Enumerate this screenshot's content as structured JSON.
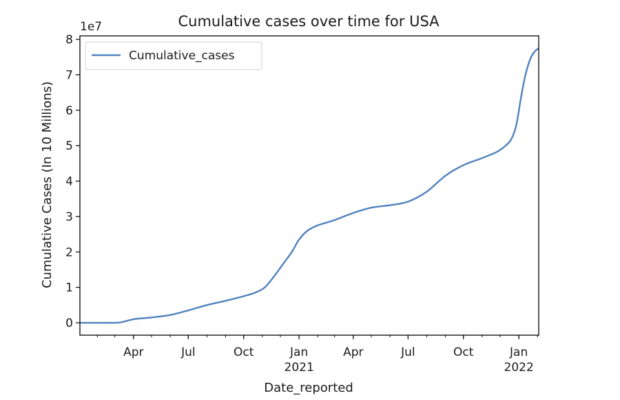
{
  "chart_data": {
    "type": "line",
    "title": "Cumulative cases over time for USA",
    "xlabel": "Date_reported",
    "ylabel": "Cumulative Cases (In 10 Millions)",
    "y_exponent_label": "1e7",
    "ylim": [
      -0.35,
      8.1
    ],
    "xlim": [
      "2020-01-03",
      "2022-02-03"
    ],
    "yticks": [
      {
        "value": 0,
        "label": "0"
      },
      {
        "value": 1,
        "label": "1"
      },
      {
        "value": 2,
        "label": "2"
      },
      {
        "value": 3,
        "label": "3"
      },
      {
        "value": 4,
        "label": "4"
      },
      {
        "value": 5,
        "label": "5"
      },
      {
        "value": 6,
        "label": "6"
      },
      {
        "value": 7,
        "label": "7"
      },
      {
        "value": 8,
        "label": "8"
      }
    ],
    "xticks": [
      {
        "date": "2020-04-01",
        "label": "Apr",
        "sublabel": ""
      },
      {
        "date": "2020-07-01",
        "label": "Jul",
        "sublabel": ""
      },
      {
        "date": "2020-10-01",
        "label": "Oct",
        "sublabel": ""
      },
      {
        "date": "2021-01-01",
        "label": "Jan",
        "sublabel": "2021"
      },
      {
        "date": "2021-04-01",
        "label": "Apr",
        "sublabel": ""
      },
      {
        "date": "2021-07-01",
        "label": "Jul",
        "sublabel": ""
      },
      {
        "date": "2021-10-01",
        "label": "Oct",
        "sublabel": ""
      },
      {
        "date": "2022-01-01",
        "label": "Jan",
        "sublabel": "2022"
      }
    ],
    "grid": false,
    "legend_position": "top-left",
    "series": [
      {
        "name": "Cumulative_cases",
        "color": "#4f81bd",
        "points": [
          [
            "2020-01-03",
            0.0
          ],
          [
            "2020-02-15",
            0.0
          ],
          [
            "2020-03-10",
            0.01
          ],
          [
            "2020-04-01",
            0.1
          ],
          [
            "2020-05-01",
            0.15
          ],
          [
            "2020-06-01",
            0.22
          ],
          [
            "2020-07-01",
            0.35
          ],
          [
            "2020-08-01",
            0.5
          ],
          [
            "2020-09-01",
            0.62
          ],
          [
            "2020-10-01",
            0.75
          ],
          [
            "2020-10-20",
            0.85
          ],
          [
            "2020-11-05",
            1.0
          ],
          [
            "2020-11-20",
            1.3
          ],
          [
            "2020-12-05",
            1.65
          ],
          [
            "2020-12-20",
            2.0
          ],
          [
            "2021-01-01",
            2.35
          ],
          [
            "2021-01-15",
            2.6
          ],
          [
            "2021-02-01",
            2.75
          ],
          [
            "2021-03-01",
            2.9
          ],
          [
            "2021-04-01",
            3.1
          ],
          [
            "2021-05-01",
            3.25
          ],
          [
            "2021-06-01",
            3.32
          ],
          [
            "2021-07-01",
            3.42
          ],
          [
            "2021-08-01",
            3.7
          ],
          [
            "2021-09-01",
            4.15
          ],
          [
            "2021-10-01",
            4.45
          ],
          [
            "2021-11-01",
            4.65
          ],
          [
            "2021-11-25",
            4.82
          ],
          [
            "2021-12-10",
            5.0
          ],
          [
            "2021-12-20",
            5.2
          ],
          [
            "2021-12-28",
            5.6
          ],
          [
            "2022-01-05",
            6.4
          ],
          [
            "2022-01-12",
            7.0
          ],
          [
            "2022-01-20",
            7.45
          ],
          [
            "2022-01-27",
            7.65
          ],
          [
            "2022-02-03",
            7.75
          ]
        ]
      }
    ]
  }
}
